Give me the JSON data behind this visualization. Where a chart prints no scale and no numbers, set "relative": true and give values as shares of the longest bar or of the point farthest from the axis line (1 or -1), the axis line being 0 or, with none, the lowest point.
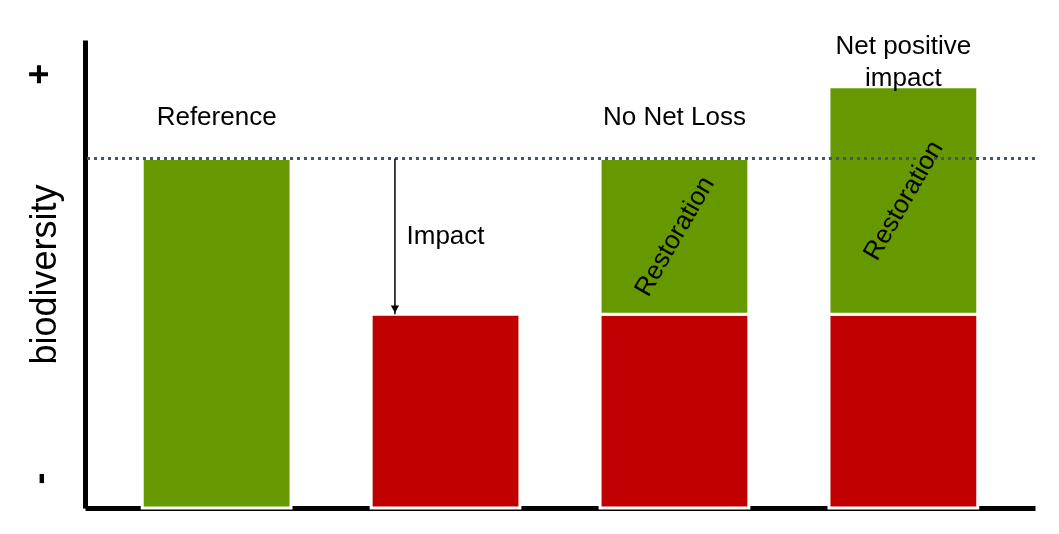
{
  "chart_data": {
    "type": "bar",
    "relative": true,
    "stacked": true,
    "categories": [
      null,
      null,
      null,
      null
    ],
    "ylabel": "biodiversity",
    "series": [
      {
        "color": "#c00000",
        "values": [
          null,
          0.46,
          0.46,
          0.46
        ]
      },
      {
        "color": "#669900",
        "values": [
          0.83,
          null,
          0.37,
          0.54
        ]
      }
    ],
    "ref_lines": [
      {
        "axis": "y",
        "value": 0.83,
        "color": "#44546a",
        "line_style": "dotted"
      }
    ],
    "annotations": [
      "Reference",
      "Impact",
      "No Net Loss",
      "Net positive impact",
      "Restoration",
      "Restoration",
      "+",
      "-"
    ]
  }
}
